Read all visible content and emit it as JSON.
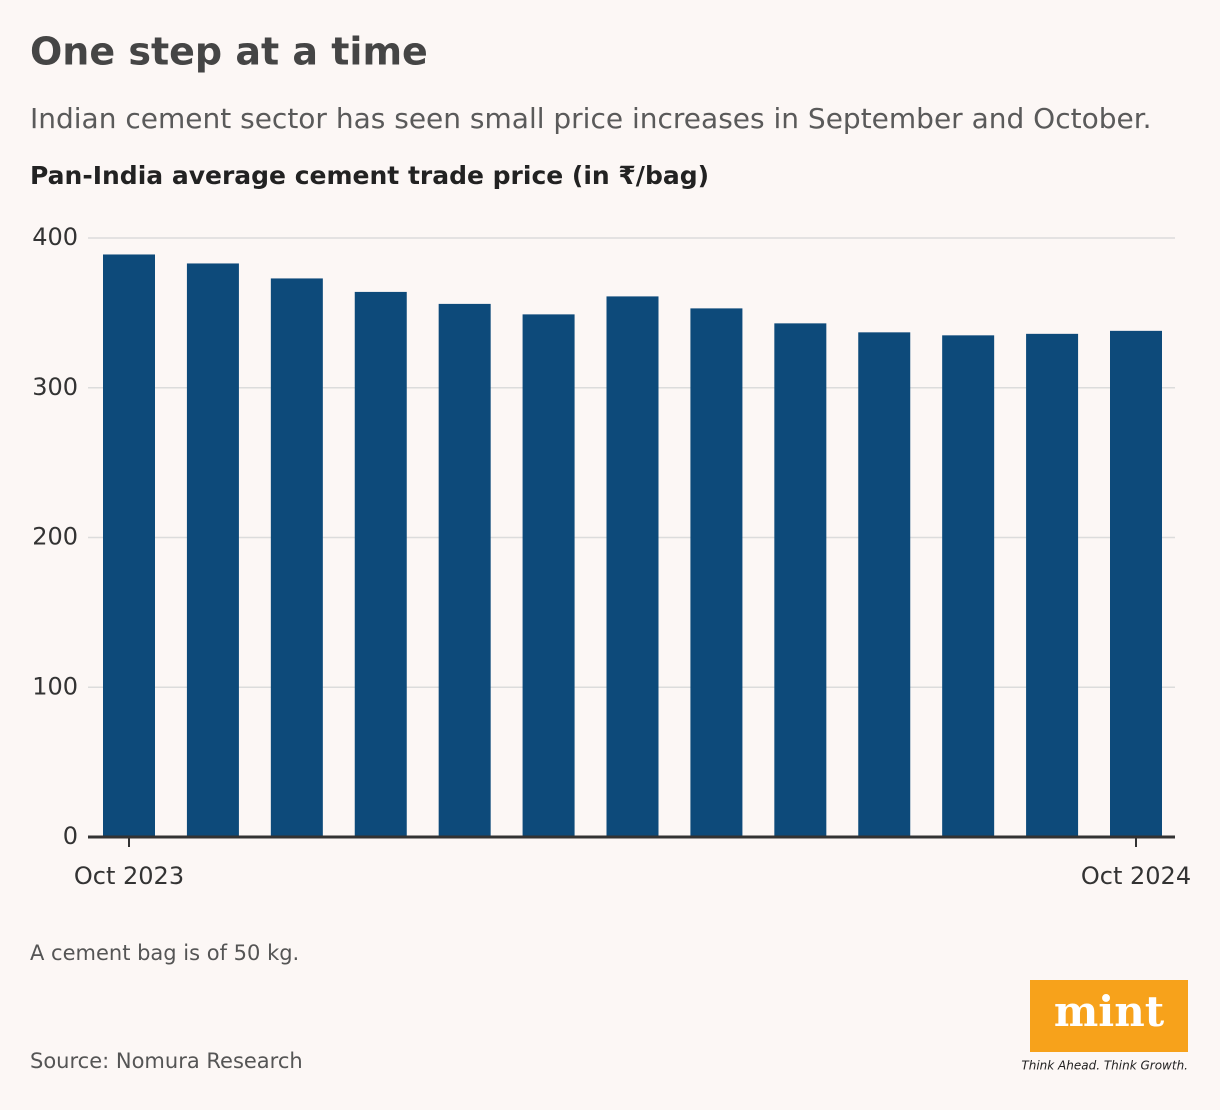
{
  "chart_data": {
    "type": "bar",
    "title": "One step at a time",
    "subtitle": "Indian cement sector has seen small price increases in September and October.",
    "y_label": "Pan-India average cement trade price (in ₹/bag)",
    "categories": [
      "Oct 2023",
      null,
      null,
      null,
      null,
      null,
      null,
      null,
      null,
      null,
      null,
      null,
      "Oct 2024"
    ],
    "values": [
      389,
      383,
      373,
      364,
      356,
      349,
      361,
      353,
      343,
      337,
      335,
      336,
      338
    ],
    "color": "#0d4a7a",
    "ylim": [
      0,
      400
    ],
    "yticks": [
      0,
      100,
      200,
      300,
      400
    ],
    "grid": true,
    "note": "A cement bag is of 50 kg.",
    "source": "Source: Nomura Research"
  },
  "logo": {
    "name": "mint",
    "tagline": "Think Ahead. Think Growth."
  }
}
